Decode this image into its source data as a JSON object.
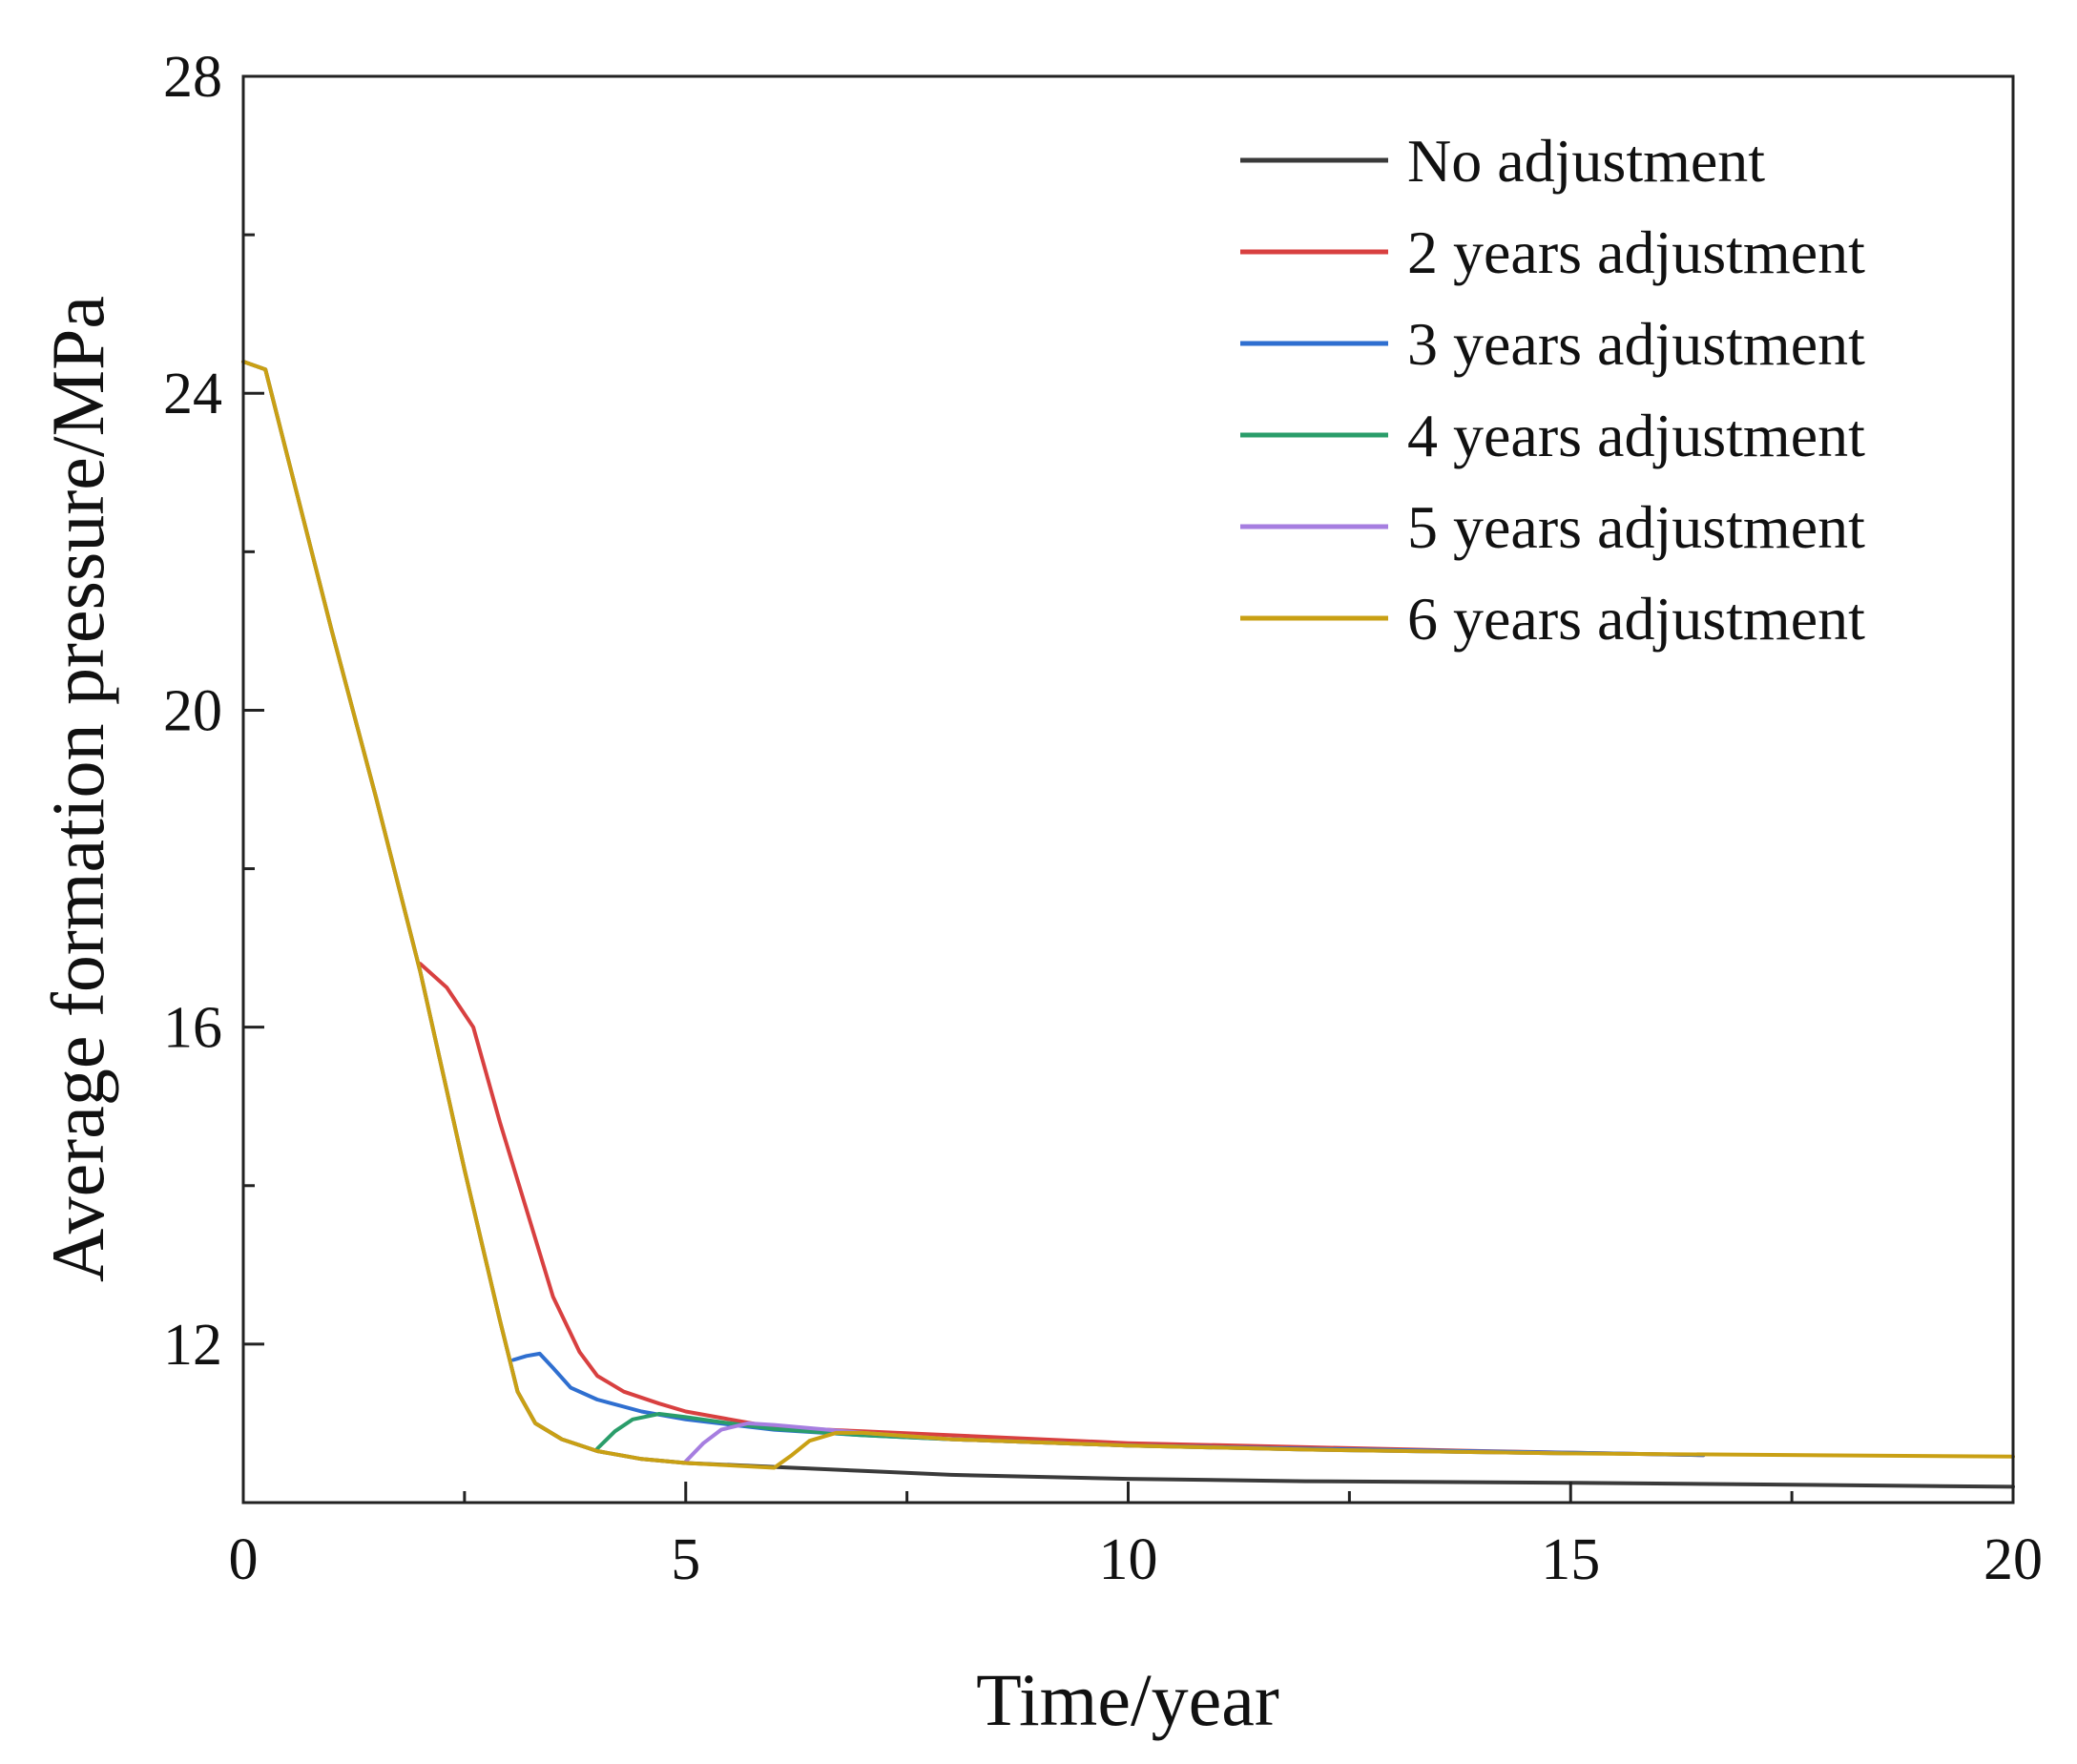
{
  "chart_data": {
    "type": "line",
    "title": "",
    "xlabel": "Time/year",
    "ylabel": "Average formation pressure/MPa",
    "xlim": [
      0,
      20
    ],
    "ylim": [
      10,
      28
    ],
    "xticks": [
      0,
      5,
      10,
      15,
      20
    ],
    "yticks": [
      12,
      16,
      20,
      24,
      28
    ],
    "legend_position": "top-right",
    "grid": false,
    "series": [
      {
        "name": "No adjustment",
        "color": "#3a3a3a",
        "x": [
          0,
          0.25,
          0.5,
          1,
          1.5,
          2,
          2.5,
          2.9,
          3.1,
          3.3,
          3.6,
          4,
          4.5,
          5,
          6,
          7,
          8,
          10,
          12,
          15,
          20
        ],
        "y": [
          24.4,
          24.3,
          23.2,
          21.0,
          18.9,
          16.7,
          14.2,
          12.3,
          11.4,
          11.0,
          10.8,
          10.65,
          10.55,
          10.5,
          10.45,
          10.4,
          10.35,
          10.3,
          10.27,
          10.25,
          10.2
        ]
      },
      {
        "name": "2 years adjustment",
        "color": "#d84040",
        "x": [
          2,
          2.3,
          2.6,
          2.9,
          3.2,
          3.5,
          3.8,
          4.0,
          4.3,
          4.7,
          5,
          6,
          7,
          8,
          10,
          12,
          14,
          16.5
        ],
        "y": [
          16.8,
          16.5,
          16.0,
          14.8,
          13.7,
          12.6,
          11.9,
          11.6,
          11.4,
          11.25,
          11.15,
          10.95,
          10.9,
          10.85,
          10.75,
          10.7,
          10.65,
          10.6
        ]
      },
      {
        "name": "3 years adjustment",
        "color": "#2f6fd0",
        "x": [
          3.05,
          3.2,
          3.35,
          3.5,
          3.7,
          4.0,
          4.5,
          5,
          6,
          7,
          8,
          10,
          12,
          15,
          16.5
        ],
        "y": [
          11.8,
          11.85,
          11.88,
          11.7,
          11.45,
          11.3,
          11.15,
          11.05,
          10.92,
          10.85,
          10.8,
          10.72,
          10.68,
          10.63,
          10.6
        ]
      },
      {
        "name": "4 years adjustment",
        "color": "#2a9d6a",
        "x": [
          4.0,
          4.2,
          4.4,
          4.7,
          5,
          5.5,
          6,
          7,
          8,
          10,
          12,
          15
        ],
        "y": [
          10.68,
          10.9,
          11.05,
          11.12,
          11.08,
          11.0,
          10.93,
          10.85,
          10.8,
          10.72,
          10.67,
          10.62
        ]
      },
      {
        "name": "5 years adjustment",
        "color": "#a67ee0",
        "x": [
          5.0,
          5.2,
          5.4,
          5.7,
          6,
          6.5,
          7,
          8,
          10,
          12,
          15
        ],
        "y": [
          10.52,
          10.75,
          10.92,
          11.0,
          10.98,
          10.93,
          10.88,
          10.8,
          10.72,
          10.67,
          10.62
        ]
      },
      {
        "name": "6 years adjustment",
        "color": "#c9a014",
        "x": [
          0,
          0.25,
          0.5,
          1,
          1.5,
          2,
          2.5,
          2.9,
          3.1,
          3.3,
          3.6,
          4,
          4.5,
          5,
          5.5,
          6,
          6.2,
          6.4,
          6.7,
          7,
          8,
          10,
          12,
          15,
          20
        ],
        "y": [
          24.4,
          24.3,
          23.2,
          21.0,
          18.9,
          16.7,
          14.2,
          12.3,
          11.4,
          11.0,
          10.8,
          10.65,
          10.55,
          10.5,
          10.47,
          10.44,
          10.6,
          10.78,
          10.88,
          10.88,
          10.8,
          10.72,
          10.67,
          10.62,
          10.58
        ]
      }
    ]
  }
}
